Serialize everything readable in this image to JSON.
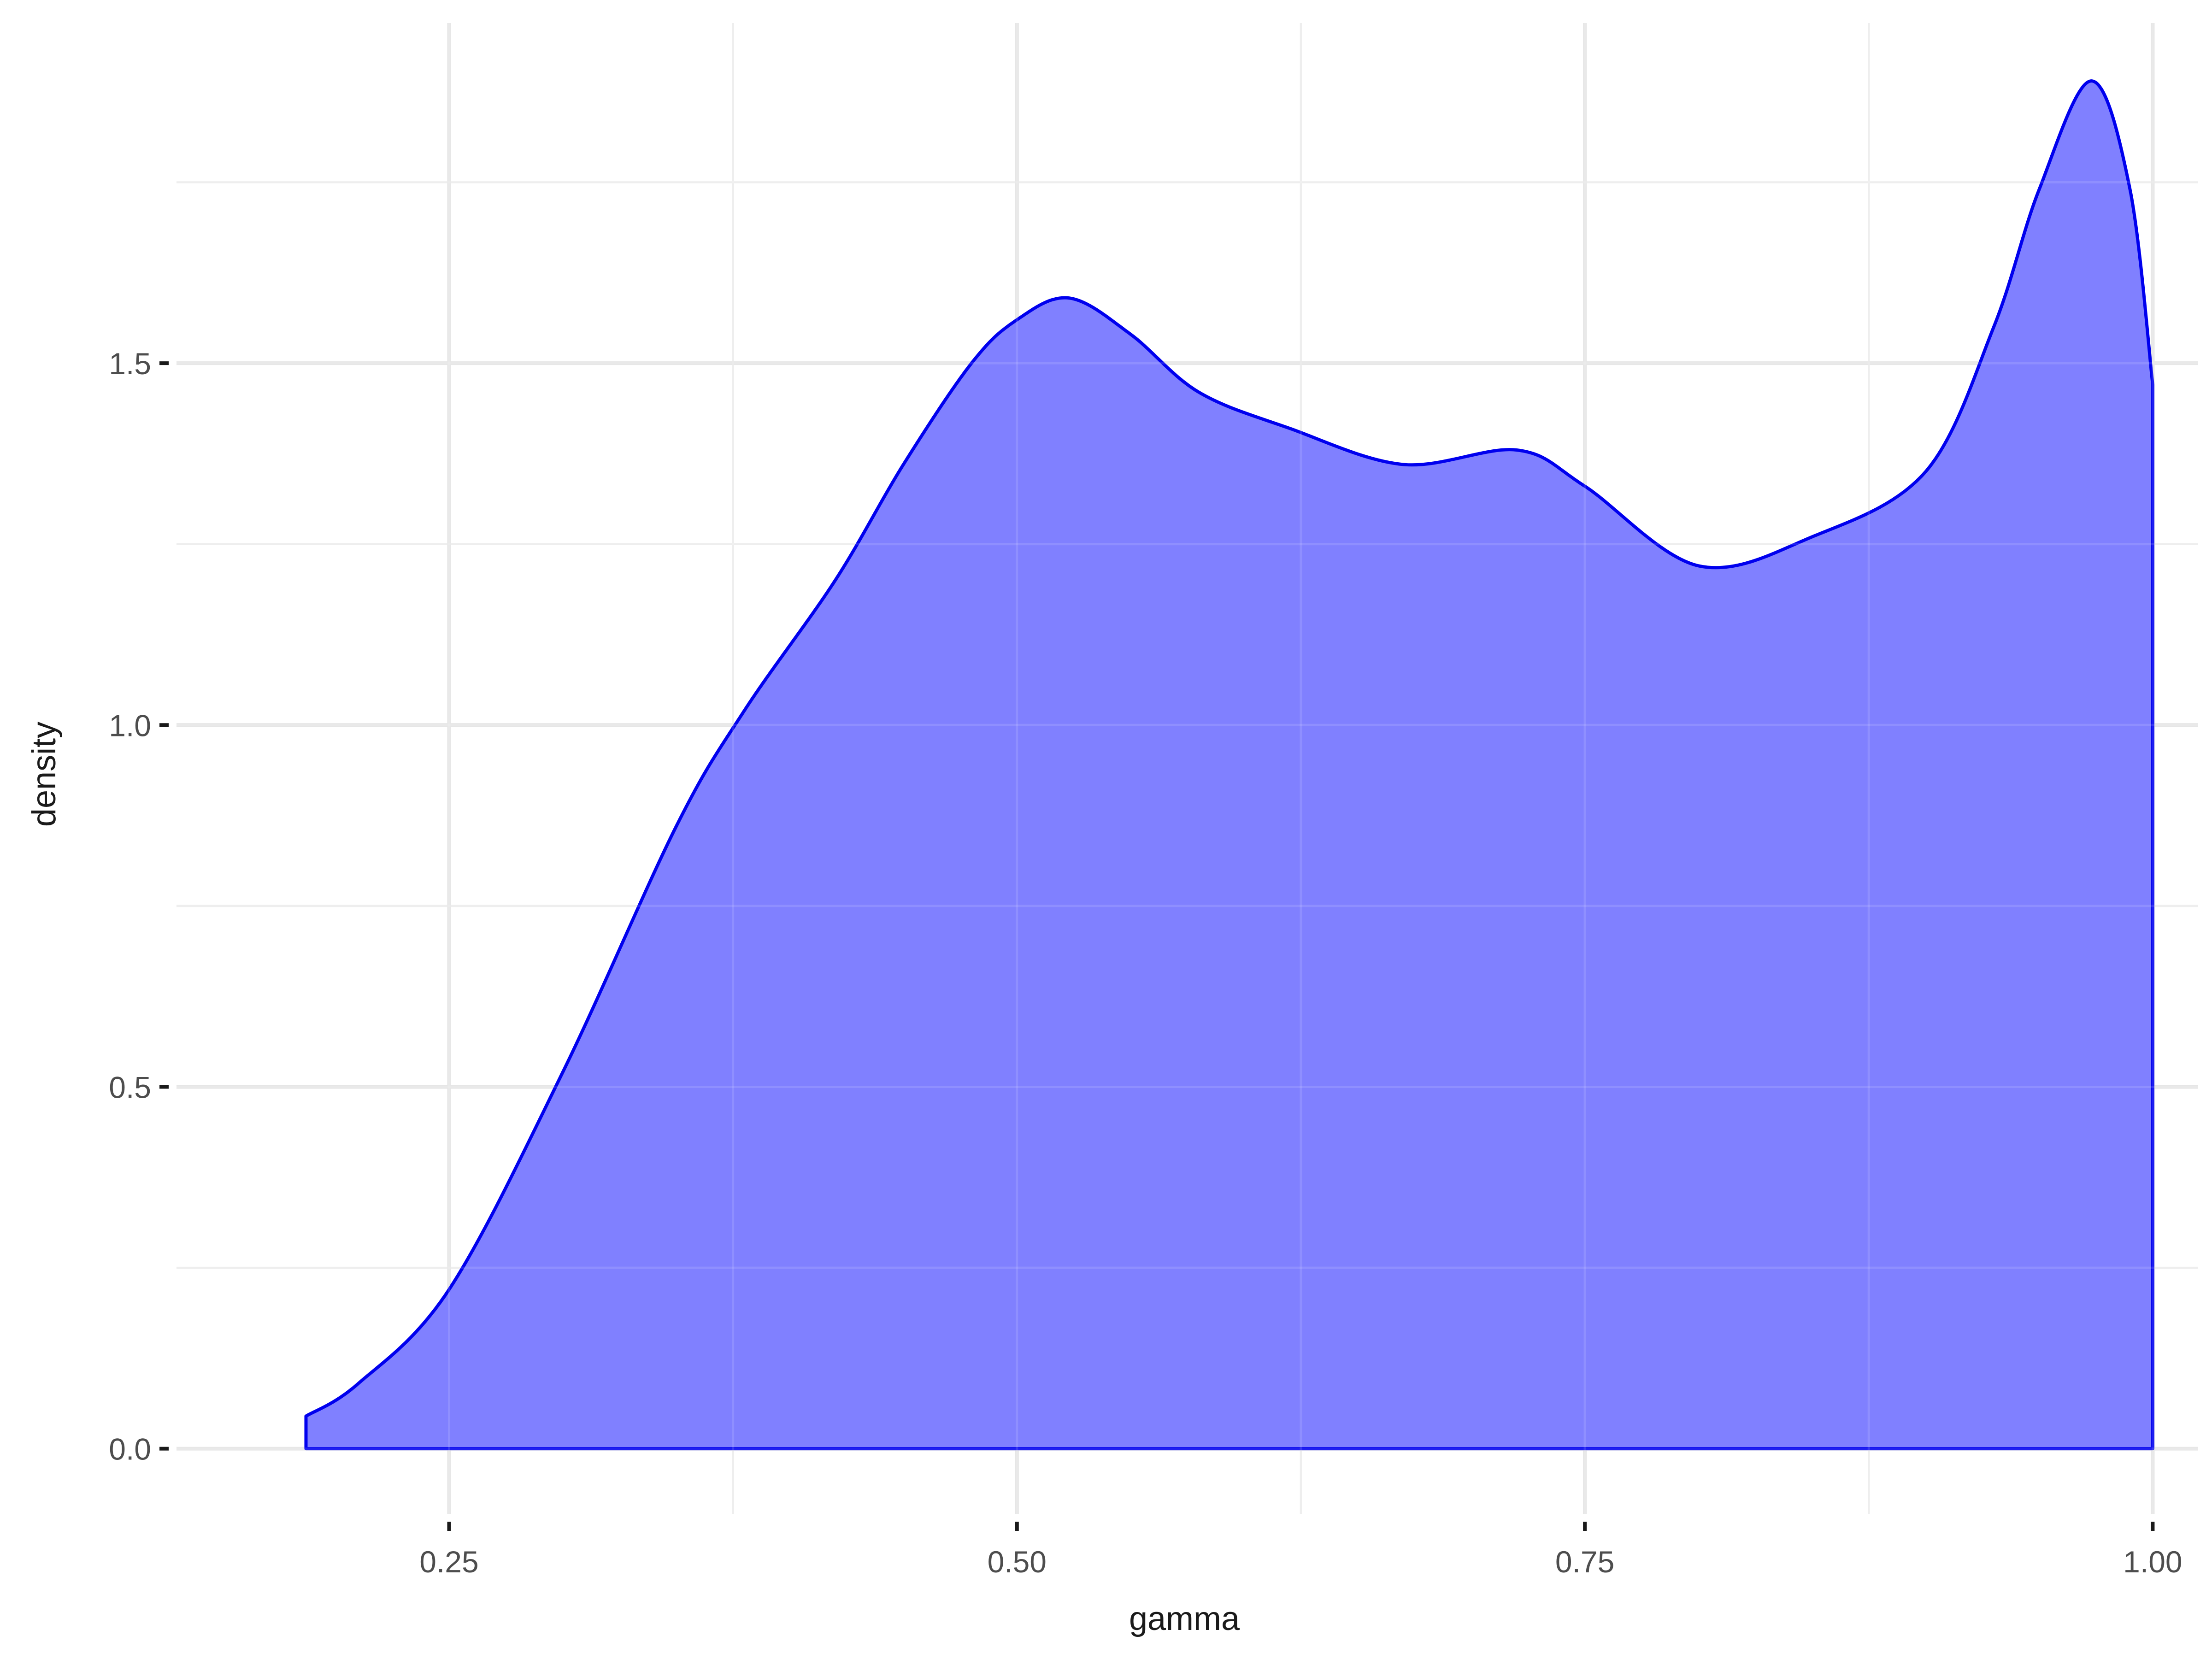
{
  "chart_data": {
    "type": "area",
    "title": "",
    "xlabel": "gamma",
    "ylabel": "density",
    "xlim": [
      0.13,
      1.02
    ],
    "ylim": [
      -0.09,
      1.97
    ],
    "x_ticks": [
      0.25,
      0.5,
      0.75,
      1.0
    ],
    "x_tick_labels": [
      "0.25",
      "0.50",
      "0.75",
      "1.00"
    ],
    "x_minor_ticks": [
      0.375,
      0.625,
      0.875
    ],
    "y_ticks": [
      0.0,
      0.5,
      1.0,
      1.5
    ],
    "y_tick_labels": [
      "0.0",
      "0.5",
      "1.0",
      "1.5"
    ],
    "y_minor_ticks": [
      0.25,
      0.75,
      1.25,
      1.75
    ],
    "grid": true,
    "legend": "none",
    "fill_color": "#8080ff",
    "line_color": "#0000ee",
    "series": [
      {
        "x": [
          0.187,
          0.21,
          0.25,
          0.3,
          0.35,
          0.38,
          0.42,
          0.45,
          0.48,
          0.5,
          0.523,
          0.55,
          0.58,
          0.62,
          0.67,
          0.72,
          0.75,
          0.8,
          0.85,
          0.9,
          0.93,
          0.95,
          0.973,
          0.99,
          1.0
        ],
        "y": [
          0.045,
          0.09,
          0.22,
          0.52,
          0.86,
          1.02,
          1.2,
          1.36,
          1.5,
          1.56,
          1.59,
          1.54,
          1.46,
          1.41,
          1.36,
          1.38,
          1.33,
          1.22,
          1.26,
          1.35,
          1.55,
          1.74,
          1.89,
          1.74,
          1.47
        ]
      }
    ]
  }
}
